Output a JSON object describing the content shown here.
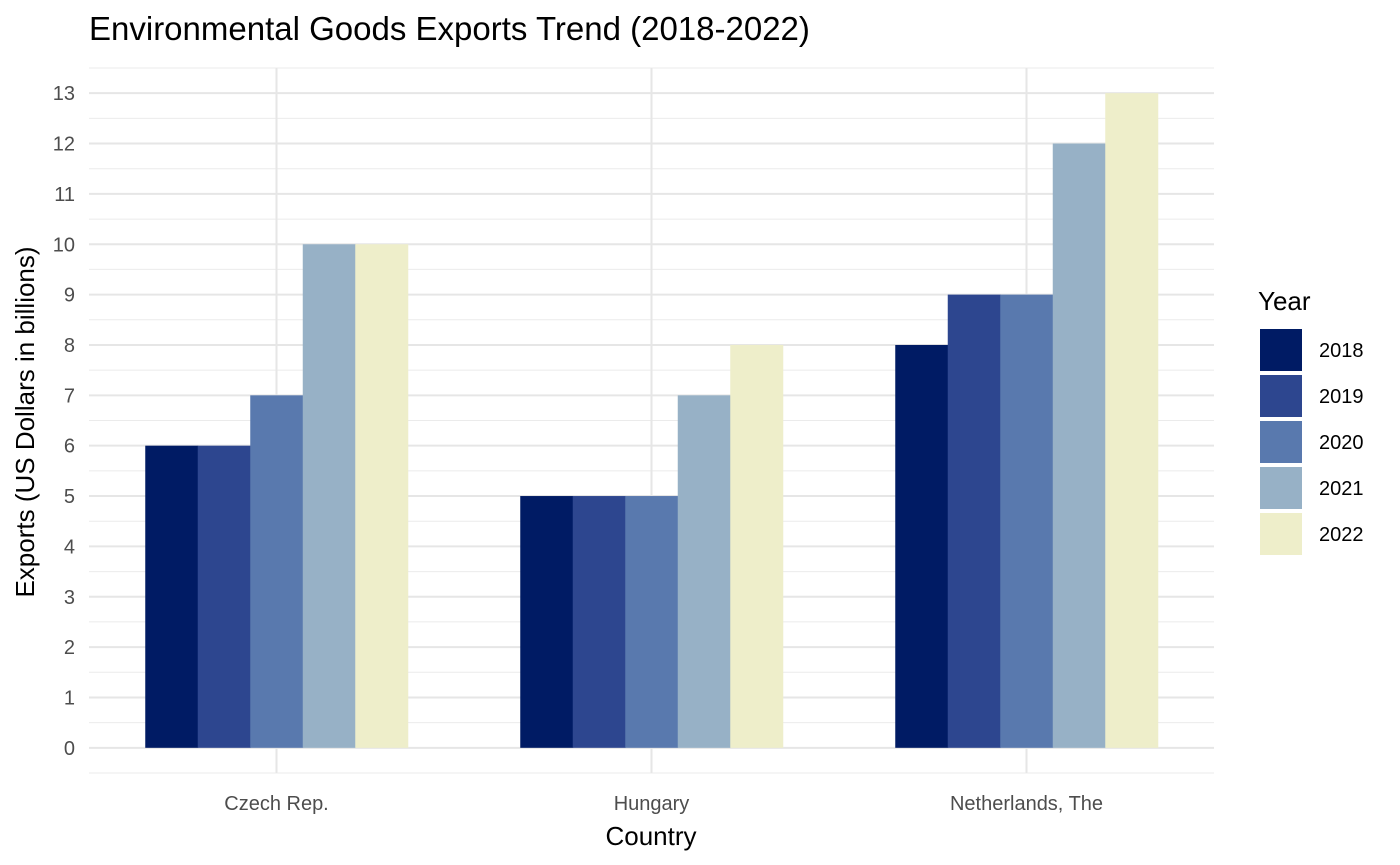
{
  "chart_data": {
    "type": "bar",
    "title": "Environmental Goods Exports Trend (2018-2022)",
    "xlabel": "Country",
    "ylabel": "Exports (US Dollars in billions)",
    "categories": [
      "Czech Rep.",
      "Hungary",
      "Netherlands, The"
    ],
    "series": [
      {
        "name": "2018",
        "color": "#001b64",
        "values": [
          6,
          5,
          8
        ]
      },
      {
        "name": "2019",
        "color": "#2d468f",
        "values": [
          6,
          5,
          9
        ]
      },
      {
        "name": "2020",
        "color": "#5979ae",
        "values": [
          7,
          5,
          9
        ]
      },
      {
        "name": "2021",
        "color": "#97b1c6",
        "values": [
          10,
          7,
          12
        ]
      },
      {
        "name": "2022",
        "color": "#eeeeca",
        "values": [
          10,
          8,
          13
        ]
      }
    ],
    "ylim": [
      -0.5,
      13.5
    ],
    "yticks": [
      0,
      1,
      2,
      3,
      4,
      5,
      6,
      7,
      8,
      9,
      10,
      11,
      12,
      13
    ],
    "grid": true,
    "legend": {
      "title": "Year",
      "position": "right"
    }
  }
}
